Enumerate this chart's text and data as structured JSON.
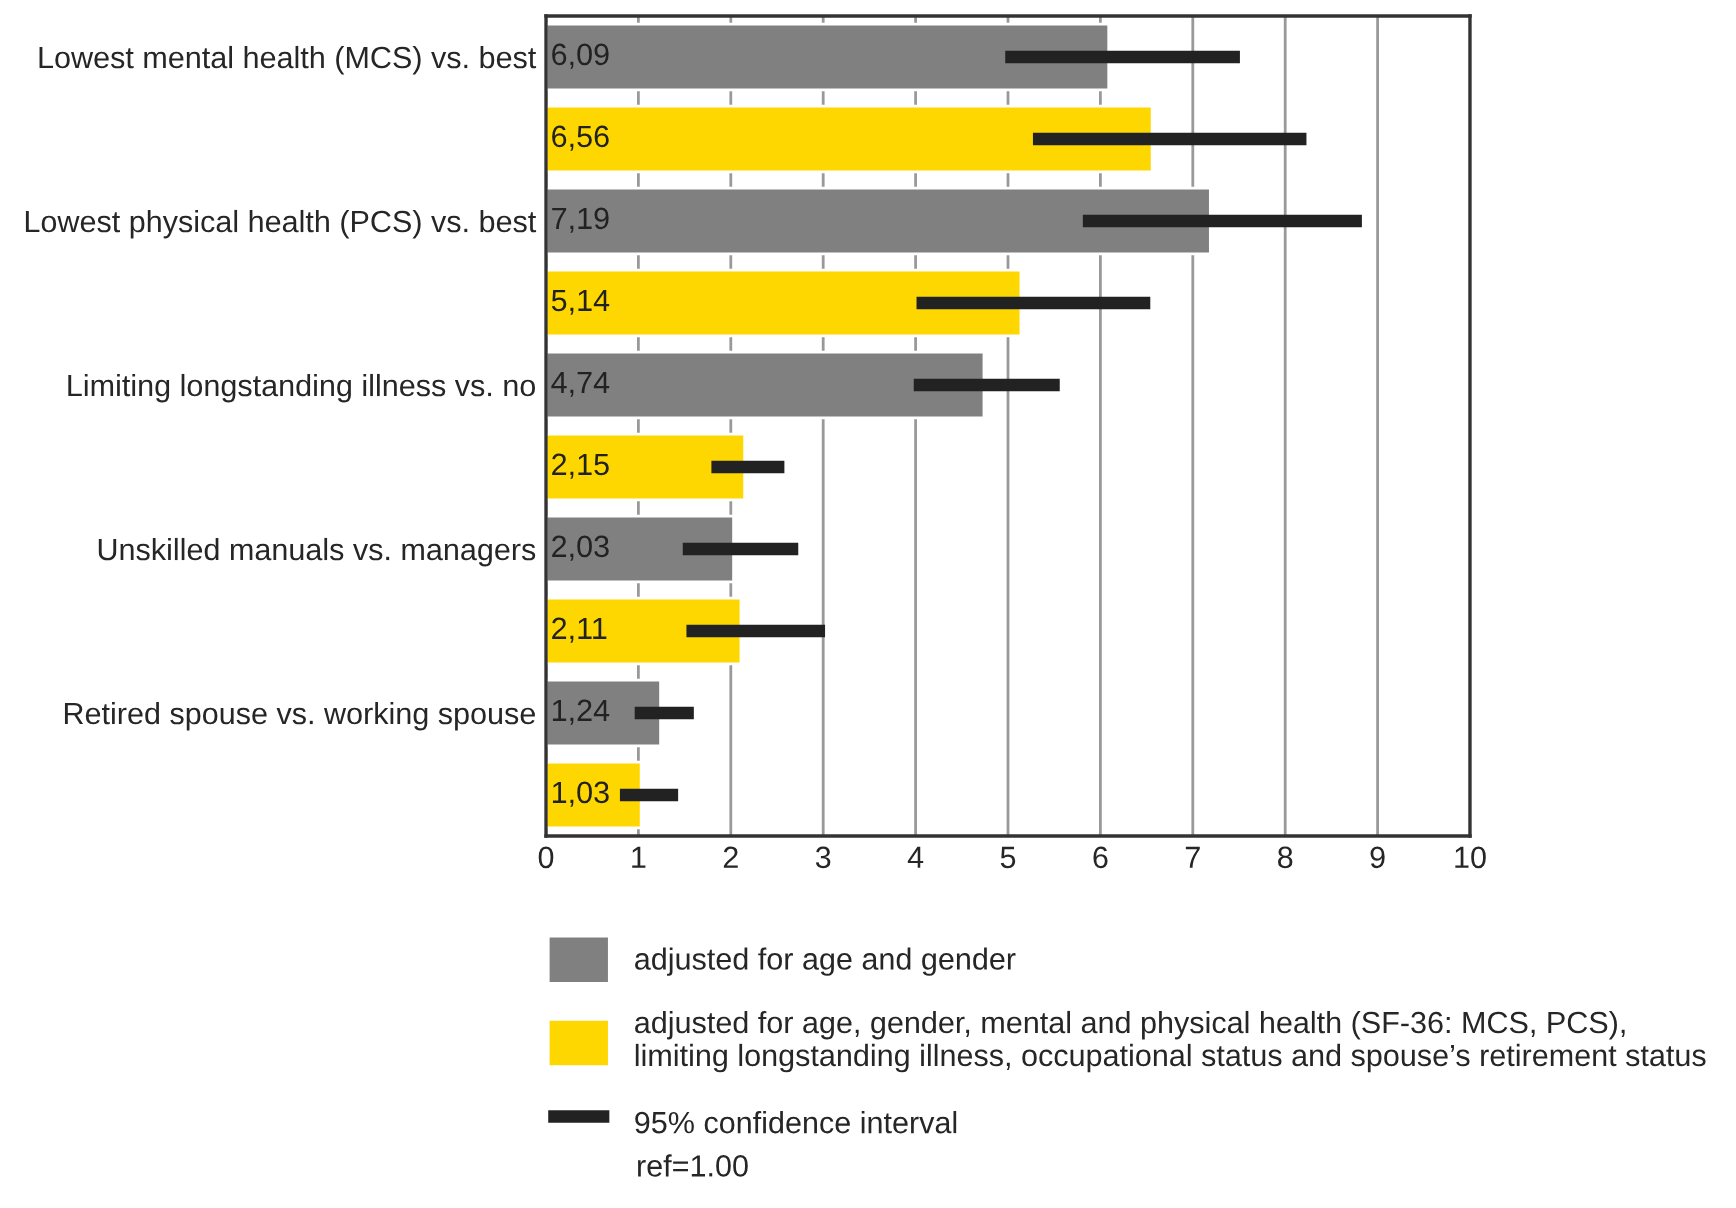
{
  "chart_data": {
    "type": "bar",
    "orientation": "horizontal",
    "categories": [
      "Lowest mental health (MCS) vs. best",
      null,
      "Lowest physical health (PCS) vs. best",
      null,
      "Limiting longstanding illness vs. no",
      null,
      "Unskilled manuals vs. managers",
      null,
      "Retired spouse vs. working spouse",
      null
    ],
    "series": [
      {
        "name": "adjusted for age and gender",
        "color": "#808080",
        "values": [
          6.09,
          null,
          7.19,
          null,
          4.74,
          null,
          2.03,
          null,
          1.24,
          null
        ],
        "value_labels": [
          "6,09",
          null,
          "7,19",
          null,
          "4,74",
          null,
          "2,03",
          null,
          "1,24",
          null
        ],
        "errors": [
          [
            4.97,
            7.51
          ],
          null,
          [
            5.81,
            8.83
          ],
          null,
          [
            3.98,
            5.56
          ],
          null,
          [
            1.48,
            2.73
          ],
          null,
          [
            0.96,
            1.6
          ],
          null
        ]
      },
      {
        "name": "adjusted for age, gender, mental and physical health (SF-36: MCS, PCS),\nlimiting longstanding illness, occupational status and spouse’s retirement status",
        "color": "#ffd700",
        "values": [
          null,
          6.56,
          null,
          5.14,
          null,
          2.15,
          null,
          2.11,
          null,
          1.03
        ],
        "value_labels": [
          null,
          "6,56",
          null,
          "5,14",
          null,
          "2,15",
          null,
          "2,11",
          null,
          "1,03"
        ],
        "errors": [
          null,
          [
            5.27,
            8.23
          ],
          null,
          [
            4.01,
            6.54
          ],
          null,
          [
            1.79,
            2.58
          ],
          null,
          [
            1.52,
            3.02
          ],
          null,
          [
            0.8,
            1.43
          ]
        ]
      }
    ],
    "annotations": [
      "95% confidence interval",
      "ref=1.00"
    ],
    "xlim": [
      0,
      10
    ],
    "xticks": [
      0,
      1,
      2,
      3,
      4,
      5,
      6,
      7,
      8,
      9,
      10
    ],
    "grid": "x",
    "legend": "bottom"
  }
}
